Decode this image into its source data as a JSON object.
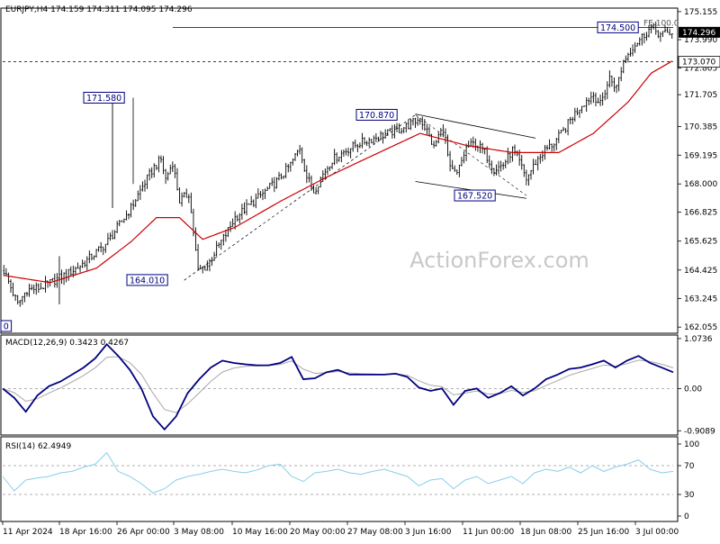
{
  "colors": {
    "price": "#000000",
    "ma": "#cc0000",
    "macd_line": "#00007f",
    "macd_signal": "#a8a8a8",
    "rsi": "#87ceeb",
    "label_box": "#00007f",
    "watermark": "#c8c8c8",
    "grid": "#999999"
  },
  "chart_data": [
    {
      "type": "candlestick",
      "title": "EURJPY,H4  174.159 174.311 174.095 174.296",
      "symbol": "EURJPY",
      "timeframe": "H4",
      "ohlc_last": [
        174.159,
        174.311,
        174.095,
        174.296
      ],
      "ylim": [
        161.8,
        175.3
      ],
      "y_ticks": [
        "175.155",
        "173.990",
        "172.805",
        "171.705",
        "170.385",
        "169.195",
        "168.000",
        "166.825",
        "165.625",
        "164.425",
        "163.245",
        "162.055"
      ],
      "x_ticks": [
        "11 Apr 2024",
        "18 Apr 16:00",
        "26 Apr 00:00",
        "3 May 08:00",
        "10 May 16:00",
        "20 May 00:00",
        "27 May 08:00",
        "3 Jun 16:00",
        "11 Jun 00:00",
        "18 Jun 08:00",
        "25 Jun 16:00",
        "3 Jul 00:00"
      ],
      "price_tags": {
        "last": "174.296",
        "level": "173.070",
        "fe": "FE 100.0"
      },
      "annotations": [
        {
          "label": "171.580",
          "value": 171.58
        },
        {
          "label": "164.010",
          "value": 164.01
        },
        {
          "label": "170.870",
          "value": 170.87
        },
        {
          "label": "167.520",
          "value": 167.52
        },
        {
          "label": "174.500",
          "value": 174.5
        },
        {
          "label": "0",
          "value": 162.1
        }
      ],
      "close_anchors": [
        [
          0,
          164.4
        ],
        [
          6,
          163.0
        ],
        [
          10,
          163.6
        ],
        [
          16,
          163.7
        ],
        [
          22,
          164.0
        ],
        [
          28,
          164.3
        ],
        [
          33,
          164.6
        ],
        [
          38,
          165.0
        ],
        [
          44,
          165.5
        ],
        [
          50,
          166.3
        ],
        [
          55,
          167.0
        ],
        [
          60,
          167.9
        ],
        [
          65,
          168.7
        ],
        [
          68,
          169.0
        ],
        [
          70,
          168.2
        ],
        [
          73,
          168.9
        ],
        [
          76,
          167.3
        ],
        [
          80,
          167.6
        ],
        [
          84,
          164.4
        ],
        [
          88,
          164.6
        ],
        [
          92,
          165.3
        ],
        [
          96,
          165.9
        ],
        [
          100,
          166.6
        ],
        [
          106,
          167.1
        ],
        [
          112,
          167.6
        ],
        [
          118,
          168.1
        ],
        [
          124,
          168.8
        ],
        [
          128,
          169.5
        ],
        [
          131,
          168.3
        ],
        [
          134,
          167.7
        ],
        [
          138,
          168.4
        ],
        [
          142,
          169.0
        ],
        [
          148,
          169.4
        ],
        [
          154,
          169.7
        ],
        [
          160,
          169.9
        ],
        [
          166,
          170.1
        ],
        [
          172,
          170.3
        ],
        [
          176,
          170.5
        ],
        [
          180,
          170.7
        ],
        [
          183,
          170.2
        ],
        [
          186,
          169.5
        ],
        [
          188,
          170.0
        ],
        [
          190,
          170.3
        ],
        [
          193,
          168.6
        ],
        [
          196,
          168.4
        ],
        [
          200,
          169.5
        ],
        [
          204,
          169.7
        ],
        [
          208,
          169.3
        ],
        [
          212,
          168.6
        ],
        [
          216,
          168.8
        ],
        [
          220,
          169.4
        ],
        [
          223,
          168.9
        ],
        [
          226,
          168.2
        ],
        [
          230,
          168.9
        ],
        [
          234,
          169.4
        ],
        [
          238,
          169.7
        ],
        [
          242,
          170.2
        ],
        [
          246,
          170.8
        ],
        [
          250,
          171.3
        ],
        [
          255,
          171.7
        ],
        [
          258,
          171.3
        ],
        [
          262,
          172.4
        ],
        [
          265,
          172.0
        ],
        [
          268,
          173.1
        ],
        [
          272,
          173.7
        ],
        [
          276,
          174.1
        ],
        [
          280,
          174.5
        ],
        [
          284,
          174.2
        ],
        [
          289,
          174.3
        ]
      ],
      "ma_anchors": [
        [
          0,
          164.2
        ],
        [
          20,
          163.9
        ],
        [
          40,
          164.5
        ],
        [
          55,
          165.6
        ],
        [
          66,
          166.6
        ],
        [
          76,
          166.6
        ],
        [
          86,
          165.7
        ],
        [
          100,
          166.2
        ],
        [
          120,
          167.3
        ],
        [
          140,
          168.3
        ],
        [
          160,
          169.2
        ],
        [
          180,
          170.1
        ],
        [
          200,
          169.6
        ],
        [
          220,
          169.3
        ],
        [
          240,
          169.3
        ],
        [
          255,
          170.1
        ],
        [
          270,
          171.4
        ],
        [
          280,
          172.6
        ],
        [
          289,
          173.1
        ]
      ],
      "channel_lines": [
        {
          "from": [
            178,
            170.9
          ],
          "to": [
            230,
            169.9
          ]
        },
        {
          "from": [
            178,
            168.1
          ],
          "to": [
            226,
            167.4
          ]
        }
      ],
      "fib_line": {
        "from": [
          78,
          164.0
        ],
        "to": [
          178,
          170.87
        ]
      },
      "watermark": "ActionForex.com"
    },
    {
      "type": "line",
      "title": "MACD(12,26,9) 0.3423 0.4267",
      "ylim": [
        -1.0,
        1.15
      ],
      "y_ticks": [
        "1.0736",
        "0.00",
        "-0.9089"
      ],
      "series": [
        {
          "name": "MACD",
          "values": [
            0.0,
            -0.2,
            -0.5,
            -0.15,
            0.05,
            0.15,
            0.3,
            0.45,
            0.65,
            0.95,
            0.7,
            0.4,
            0.0,
            -0.6,
            -0.88,
            -0.6,
            -0.1,
            0.2,
            0.45,
            0.6,
            0.55,
            0.52,
            0.5,
            0.5,
            0.55,
            0.68,
            0.2,
            0.22,
            0.35,
            0.4,
            0.3,
            0.3,
            0.3,
            0.3,
            0.32,
            0.25,
            0.02,
            -0.05,
            0.0,
            -0.35,
            -0.05,
            0.0,
            -0.2,
            -0.1,
            0.05,
            -0.15,
            0.0,
            0.2,
            0.3,
            0.42,
            0.45,
            0.52,
            0.6,
            0.45,
            0.6,
            0.7,
            0.55,
            0.45,
            0.35
          ]
        }
      ]
    },
    {
      "type": "line",
      "title": "RSI(14) 62.4949",
      "ylim": [
        0,
        100
      ],
      "y_ticks": [
        "100",
        "70",
        "30",
        "0"
      ],
      "series": [
        {
          "name": "RSI",
          "values": [
            55,
            35,
            50,
            53,
            55,
            60,
            62,
            68,
            72,
            88,
            62,
            55,
            45,
            32,
            38,
            50,
            55,
            58,
            62,
            65,
            62,
            60,
            64,
            70,
            72,
            55,
            48,
            60,
            62,
            65,
            60,
            58,
            62,
            65,
            60,
            55,
            42,
            50,
            52,
            38,
            50,
            55,
            45,
            50,
            55,
            45,
            60,
            65,
            62,
            68,
            60,
            70,
            62,
            68,
            72,
            78,
            65,
            60,
            62
          ]
        }
      ]
    }
  ]
}
